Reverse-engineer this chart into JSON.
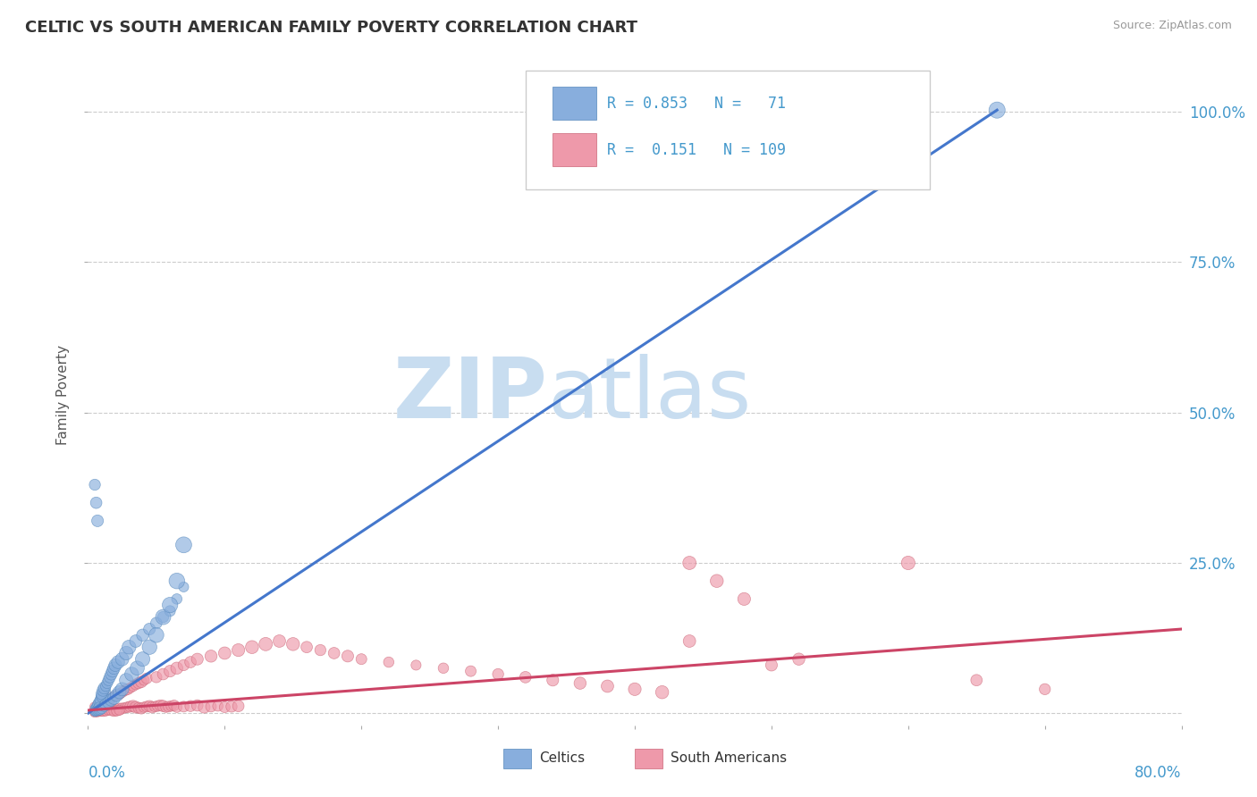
{
  "title": "CELTIC VS SOUTH AMERICAN FAMILY POVERTY CORRELATION CHART",
  "source": "Source: ZipAtlas.com",
  "ylabel": "Family Poverty",
  "yticks": [
    0,
    0.25,
    0.5,
    0.75,
    1.0
  ],
  "ytick_labels": [
    "",
    "25.0%",
    "50.0%",
    "75.0%",
    "100.0%"
  ],
  "xlim": [
    0,
    0.8
  ],
  "ylim": [
    -0.02,
    1.08
  ],
  "watermark_zip": "ZIP",
  "watermark_atlas": "atlas",
  "watermark_color": "#c8ddf0",
  "celtics_color": "#88aedd",
  "celtics_edge": "#5588bb",
  "sa_color": "#ee99aa",
  "sa_edge": "#cc6677",
  "blue_line_color": "#4477cc",
  "pink_line_color": "#cc4466",
  "grid_color": "#cccccc",
  "background": "#ffffff",
  "blue_line_x": [
    0.0,
    0.665
  ],
  "blue_line_y": [
    0.0,
    1.003
  ],
  "pink_line_x": [
    0.0,
    0.8
  ],
  "pink_line_y": [
    0.005,
    0.14
  ],
  "celtics_x": [
    0.005,
    0.006,
    0.007,
    0.008,
    0.009,
    0.01,
    0.01,
    0.011,
    0.012,
    0.005,
    0.006,
    0.007,
    0.008,
    0.009,
    0.01,
    0.01,
    0.011,
    0.012,
    0.005,
    0.006,
    0.007,
    0.008,
    0.013,
    0.014,
    0.015,
    0.016,
    0.017,
    0.018,
    0.019,
    0.02,
    0.022,
    0.025,
    0.028,
    0.03,
    0.035,
    0.04,
    0.045,
    0.05,
    0.055,
    0.06,
    0.065,
    0.07,
    0.005,
    0.006,
    0.007,
    0.008,
    0.009,
    0.01,
    0.012,
    0.013,
    0.015,
    0.017,
    0.019,
    0.021,
    0.023,
    0.025,
    0.028,
    0.032,
    0.036,
    0.04,
    0.045,
    0.05,
    0.055,
    0.06,
    0.065,
    0.07,
    0.005,
    0.006,
    0.007,
    0.665
  ],
  "celtics_y": [
    0.005,
    0.008,
    0.01,
    0.012,
    0.015,
    0.02,
    0.025,
    0.03,
    0.035,
    0.008,
    0.01,
    0.015,
    0.018,
    0.022,
    0.028,
    0.032,
    0.038,
    0.042,
    0.003,
    0.005,
    0.007,
    0.01,
    0.045,
    0.05,
    0.055,
    0.06,
    0.065,
    0.07,
    0.075,
    0.08,
    0.085,
    0.09,
    0.1,
    0.11,
    0.12,
    0.13,
    0.14,
    0.15,
    0.16,
    0.17,
    0.19,
    0.21,
    0.002,
    0.003,
    0.004,
    0.005,
    0.006,
    0.008,
    0.012,
    0.015,
    0.018,
    0.022,
    0.025,
    0.03,
    0.035,
    0.04,
    0.055,
    0.065,
    0.075,
    0.09,
    0.11,
    0.13,
    0.16,
    0.18,
    0.22,
    0.28,
    0.38,
    0.35,
    0.32,
    1.003
  ],
  "celtics_sizes": [
    60,
    65,
    70,
    75,
    80,
    85,
    90,
    95,
    100,
    55,
    60,
    65,
    70,
    75,
    80,
    85,
    90,
    95,
    50,
    55,
    60,
    65,
    70,
    75,
    80,
    85,
    90,
    95,
    100,
    105,
    110,
    115,
    120,
    125,
    100,
    95,
    90,
    85,
    80,
    75,
    70,
    65,
    50,
    55,
    60,
    65,
    70,
    75,
    80,
    85,
    90,
    95,
    100,
    105,
    110,
    115,
    120,
    125,
    130,
    135,
    140,
    145,
    150,
    155,
    160,
    165,
    80,
    85,
    90,
    170
  ],
  "sa_x": [
    0.005,
    0.007,
    0.009,
    0.011,
    0.013,
    0.015,
    0.017,
    0.019,
    0.021,
    0.023,
    0.025,
    0.027,
    0.029,
    0.031,
    0.033,
    0.035,
    0.037,
    0.039,
    0.041,
    0.043,
    0.045,
    0.047,
    0.049,
    0.051,
    0.053,
    0.055,
    0.057,
    0.059,
    0.061,
    0.063,
    0.065,
    0.07,
    0.075,
    0.08,
    0.085,
    0.09,
    0.095,
    0.1,
    0.105,
    0.11,
    0.005,
    0.007,
    0.009,
    0.011,
    0.013,
    0.015,
    0.017,
    0.019,
    0.021,
    0.023,
    0.025,
    0.027,
    0.029,
    0.031,
    0.033,
    0.035,
    0.037,
    0.039,
    0.041,
    0.043,
    0.05,
    0.055,
    0.06,
    0.065,
    0.07,
    0.075,
    0.08,
    0.09,
    0.1,
    0.11,
    0.12,
    0.13,
    0.14,
    0.15,
    0.16,
    0.17,
    0.18,
    0.19,
    0.2,
    0.22,
    0.24,
    0.26,
    0.28,
    0.3,
    0.32,
    0.34,
    0.36,
    0.38,
    0.4,
    0.42,
    0.005,
    0.007,
    0.009,
    0.011,
    0.013,
    0.015,
    0.017,
    0.019,
    0.021,
    0.023,
    0.44,
    0.46,
    0.48,
    0.5,
    0.52,
    0.6,
    0.65,
    0.7,
    0.44
  ],
  "sa_y": [
    0.002,
    0.003,
    0.004,
    0.005,
    0.006,
    0.007,
    0.008,
    0.005,
    0.006,
    0.007,
    0.008,
    0.009,
    0.01,
    0.011,
    0.012,
    0.01,
    0.009,
    0.008,
    0.01,
    0.011,
    0.012,
    0.01,
    0.011,
    0.012,
    0.013,
    0.012,
    0.01,
    0.011,
    0.012,
    0.013,
    0.01,
    0.011,
    0.012,
    0.013,
    0.01,
    0.011,
    0.012,
    0.01,
    0.011,
    0.012,
    0.01,
    0.012,
    0.015,
    0.018,
    0.02,
    0.022,
    0.025,
    0.028,
    0.03,
    0.032,
    0.035,
    0.038,
    0.04,
    0.042,
    0.045,
    0.048,
    0.05,
    0.052,
    0.055,
    0.058,
    0.06,
    0.065,
    0.07,
    0.075,
    0.08,
    0.085,
    0.09,
    0.095,
    0.1,
    0.105,
    0.11,
    0.115,
    0.12,
    0.115,
    0.11,
    0.105,
    0.1,
    0.095,
    0.09,
    0.085,
    0.08,
    0.075,
    0.07,
    0.065,
    0.06,
    0.055,
    0.05,
    0.045,
    0.04,
    0.035,
    0.003,
    0.004,
    0.005,
    0.003,
    0.004,
    0.005,
    0.004,
    0.003,
    0.004,
    0.005,
    0.25,
    0.22,
    0.19,
    0.08,
    0.09,
    0.25,
    0.055,
    0.04,
    0.12
  ],
  "sa_sizes": [
    70,
    75,
    80,
    85,
    90,
    70,
    75,
    80,
    85,
    90,
    75,
    70,
    75,
    80,
    85,
    90,
    75,
    80,
    70,
    75,
    80,
    85,
    70,
    75,
    80,
    85,
    70,
    75,
    70,
    75,
    70,
    75,
    80,
    85,
    90,
    75,
    70,
    75,
    80,
    85,
    70,
    75,
    80,
    85,
    90,
    75,
    70,
    65,
    70,
    75,
    70,
    75,
    80,
    65,
    70,
    75,
    80,
    85,
    70,
    75,
    80,
    85,
    90,
    95,
    80,
    85,
    90,
    95,
    100,
    105,
    110,
    115,
    100,
    110,
    85,
    80,
    85,
    90,
    75,
    70,
    65,
    70,
    75,
    80,
    85,
    90,
    95,
    100,
    105,
    110,
    60,
    65,
    60,
    65,
    70,
    65,
    60,
    65,
    70,
    65,
    115,
    110,
    105,
    90,
    95,
    120,
    85,
    80,
    100
  ]
}
